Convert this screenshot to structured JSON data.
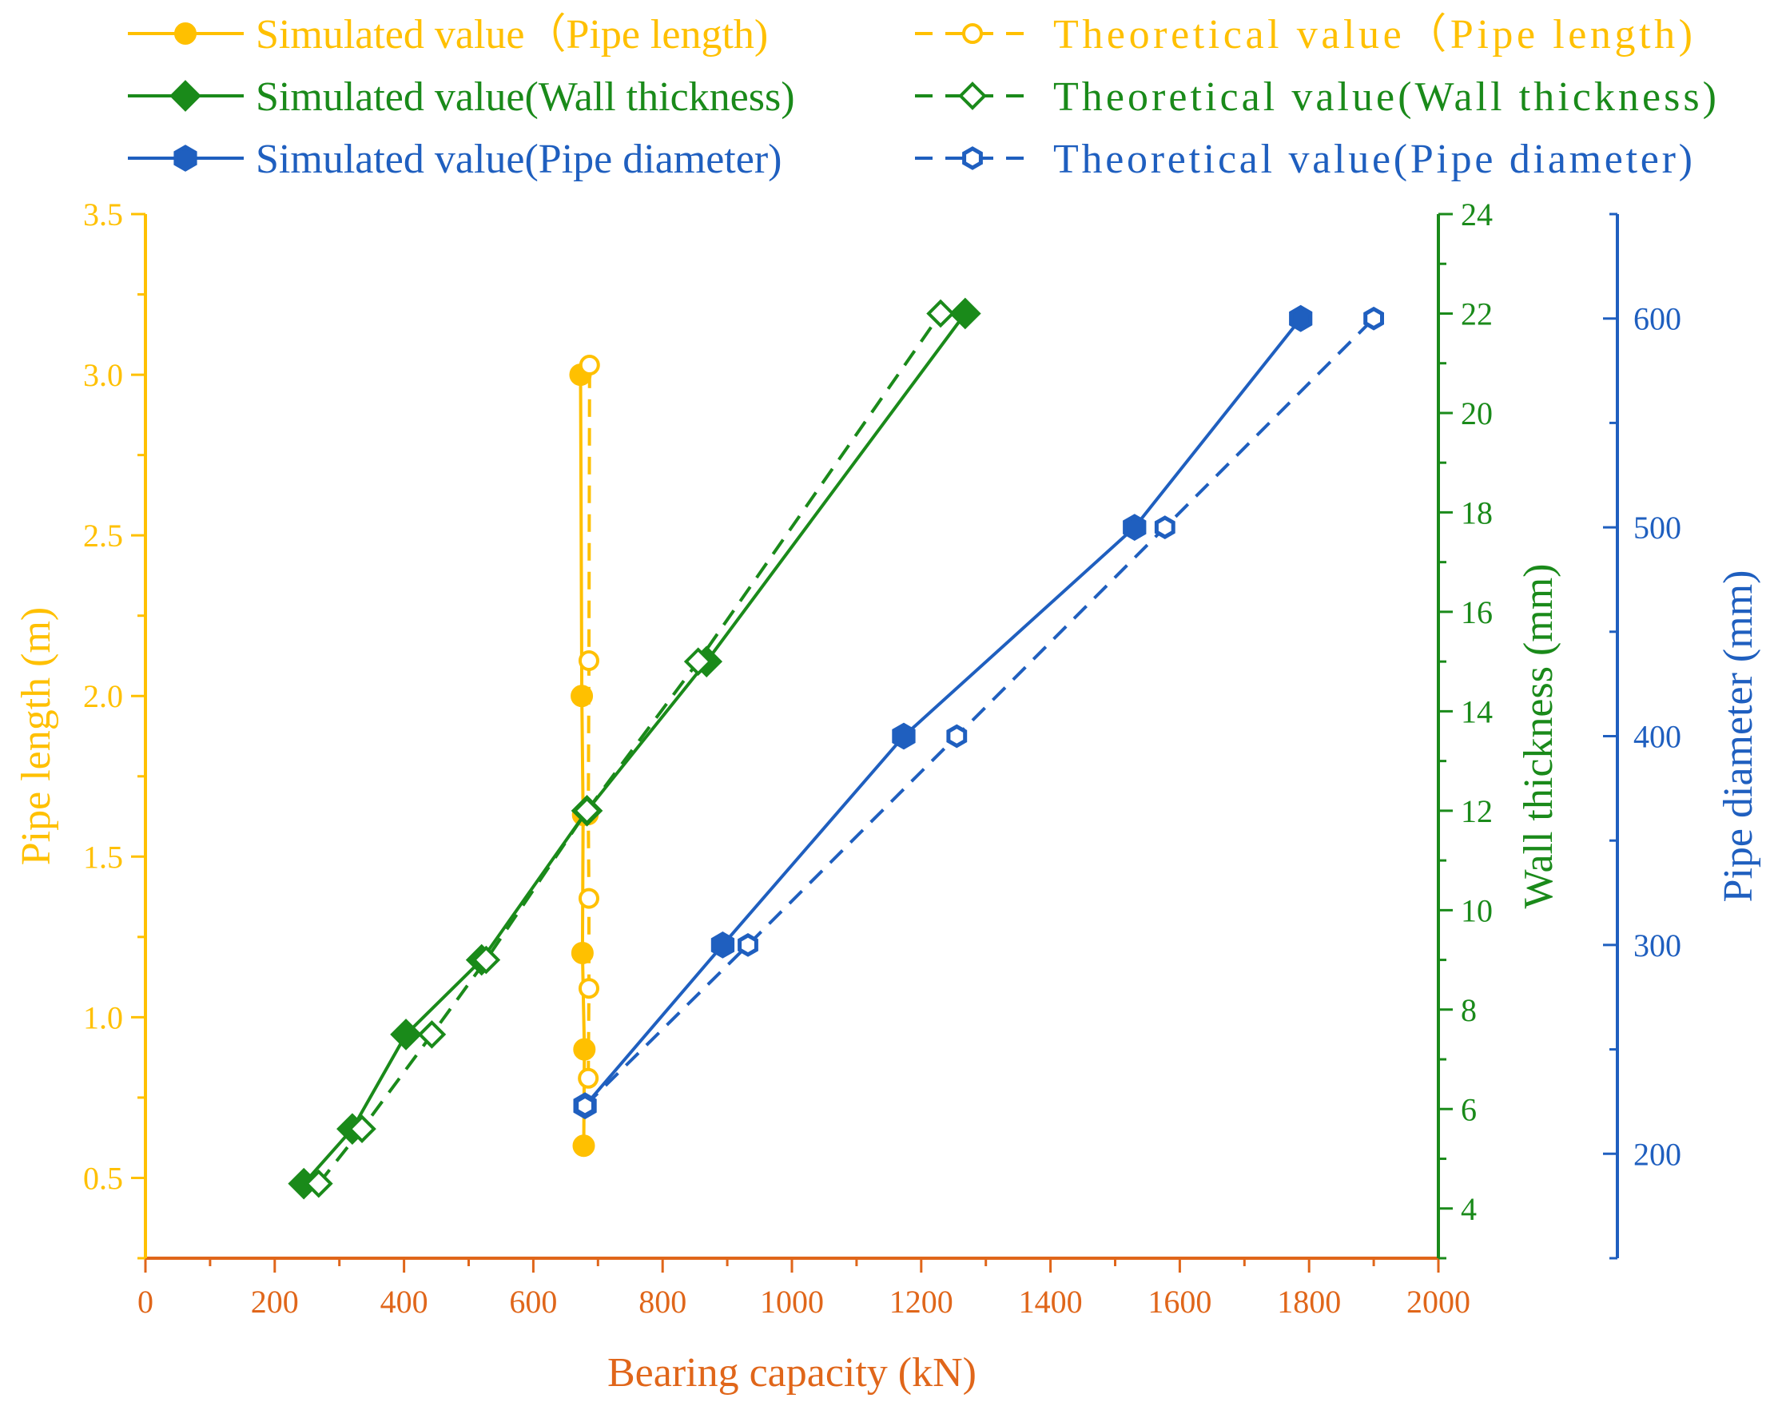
{
  "chart_data": {
    "type": "line",
    "colors": {
      "pipe_length": "#FFC000",
      "wall_thickness": "#1A8A1A",
      "pipe_diameter": "#1F5FBF",
      "x_axis": "#E0661A"
    },
    "x_axis": {
      "label": "Bearing capacity (kN)",
      "range": [
        0,
        2000
      ],
      "ticks": [
        "0",
        "200",
        "400",
        "600",
        "800",
        "1000",
        "1200",
        "1400",
        "1600",
        "1800",
        "2000"
      ]
    },
    "y_axes": {
      "pipe_length": {
        "label": "Pipe length (m)",
        "range": [
          0.25,
          3.5
        ],
        "ticks": [
          "0.5",
          "1.0",
          "1.5",
          "2.0",
          "2.5",
          "3.0",
          "3.5"
        ]
      },
      "wall_thickness": {
        "label": "Wall thickness (mm)",
        "range": [
          3,
          24
        ],
        "ticks": [
          "4",
          "6",
          "8",
          "10",
          "12",
          "14",
          "16",
          "18",
          "20",
          "22",
          "24"
        ]
      },
      "pipe_diameter": {
        "label": "Pipe diameter (mm)",
        "range": [
          150,
          650
        ],
        "ticks": [
          "200",
          "300",
          "400",
          "500",
          "600"
        ]
      }
    },
    "legend": [
      {
        "label": "Simulated value（Pipe length)",
        "series": "sim_length"
      },
      {
        "label": "Theoretical value（Pipe length)",
        "series": "theo_length"
      },
      {
        "label": "Simulated value(Wall thickness)",
        "series": "sim_wall"
      },
      {
        "label": "Theoretical value(Wall thickness)",
        "series": "theo_wall"
      },
      {
        "label": "Simulated value(Pipe diameter)",
        "series": "sim_diam"
      },
      {
        "label": "Theoretical value(Pipe diameter)",
        "series": "theo_diam"
      }
    ],
    "series": [
      {
        "name": "Simulated value（Pipe length)",
        "key": "sim_length",
        "axis": "pipe_length",
        "x": [
          678,
          679,
          676,
          677,
          675,
          673
        ],
        "y": [
          0.6,
          0.9,
          1.2,
          1.63,
          2.0,
          3.0
        ]
      },
      {
        "name": "Theoretical value（Pipe length)",
        "key": "theo_length",
        "axis": "pipe_length",
        "x": [
          685,
          686,
          686,
          685,
          686,
          687
        ],
        "y": [
          0.81,
          1.09,
          1.37,
          1.63,
          2.11,
          3.03
        ]
      },
      {
        "name": "Simulated value(Wall thickness)",
        "key": "sim_wall",
        "axis": "wall_thickness",
        "x": [
          245,
          320,
          403,
          520,
          868,
          683,
          1268
        ],
        "y": [
          4.5,
          5.6,
          7.5,
          9.0,
          15.0,
          12.0,
          22.0
        ]
      },
      {
        "name": "Theoretical value(Wall thickness)",
        "key": "theo_wall",
        "axis": "wall_thickness",
        "x": [
          268,
          335,
          443,
          527,
          855,
          683,
          1230
        ],
        "y": [
          4.5,
          5.6,
          7.5,
          9.0,
          15.0,
          12.0,
          22.0
        ]
      },
      {
        "name": "Simulated value(Pipe diameter)",
        "key": "sim_diam",
        "axis": "pipe_diameter",
        "x": [
          680,
          893,
          1173,
          1530,
          1787
        ],
        "y": [
          223,
          300,
          400,
          500,
          600
        ]
      },
      {
        "name": "Theoretical value(Pipe diameter)",
        "key": "theo_diam",
        "axis": "pipe_diameter",
        "x": [
          680,
          932,
          1255,
          1577,
          1900
        ],
        "y": [
          223,
          300,
          400,
          500,
          600
        ]
      }
    ]
  }
}
